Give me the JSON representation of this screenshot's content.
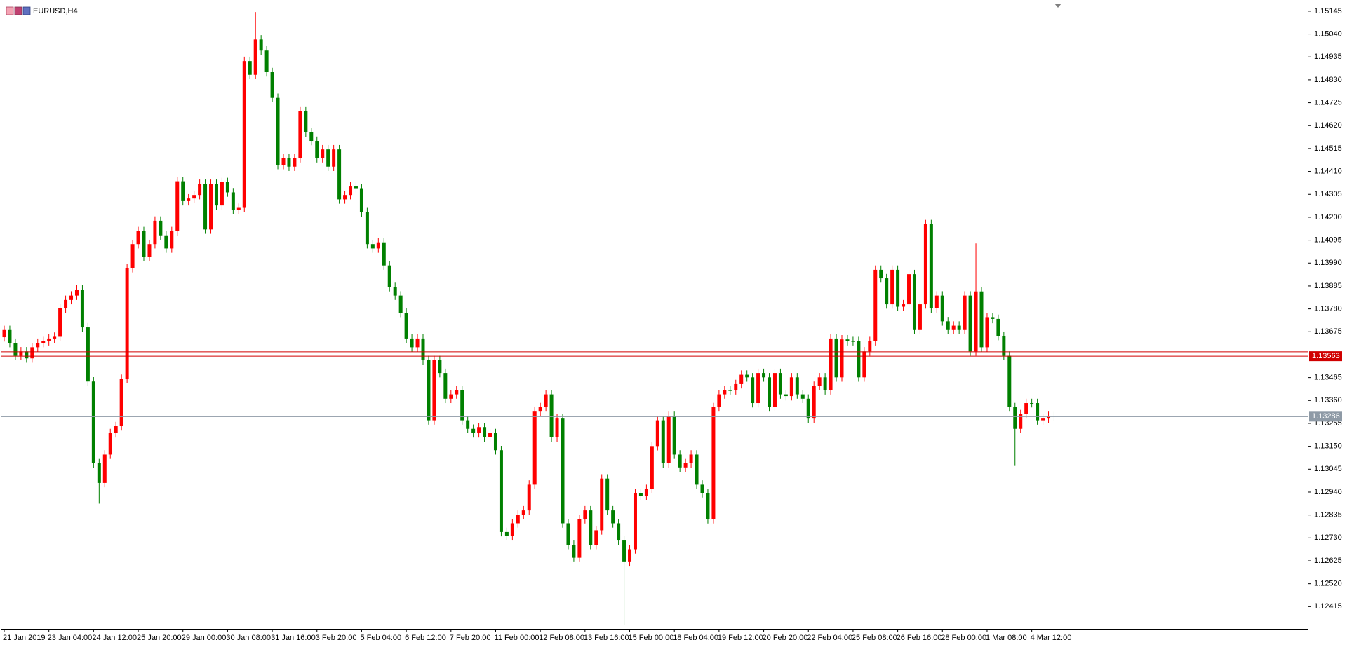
{
  "chart_data": {
    "type": "candlestick",
    "title": "EURUSD,H4",
    "categories": [
      "21 Jan 2019",
      null,
      null,
      null,
      null,
      null,
      null,
      null,
      "23 Jan 04:00",
      null,
      null,
      null,
      null,
      null,
      null,
      null,
      "24 Jan 12:00",
      null,
      null,
      null,
      null,
      null,
      null,
      null,
      "25 Jan 20:00",
      null,
      null,
      null,
      null,
      null,
      null,
      null,
      "29 Jan 00:00",
      null,
      null,
      null,
      null,
      null,
      null,
      null,
      "30 Jan 08:00",
      null,
      null,
      null,
      null,
      null,
      null,
      null,
      "31 Jan 16:00",
      null,
      null,
      null,
      null,
      null,
      null,
      null,
      "3 Feb 20:00",
      null,
      null,
      null,
      null,
      null,
      null,
      null,
      "5 Feb 04:00",
      null,
      null,
      null,
      null,
      null,
      null,
      null,
      "6 Feb 12:00",
      null,
      null,
      null,
      null,
      null,
      null,
      null,
      "7 Feb 20:00",
      null,
      null,
      null,
      null,
      null,
      null,
      null,
      "11 Feb 00:00",
      null,
      null,
      null,
      null,
      null,
      null,
      null,
      "12 Feb 08:00",
      null,
      null,
      null,
      null,
      null,
      null,
      null,
      "13 Feb 16:00",
      null,
      null,
      null,
      null,
      null,
      null,
      null,
      "15 Feb 00:00",
      null,
      null,
      null,
      null,
      null,
      null,
      null,
      "18 Feb 04:00",
      null,
      null,
      null,
      null,
      null,
      null,
      null,
      "19 Feb 12:00",
      null,
      null,
      null,
      null,
      null,
      null,
      null,
      "20 Feb 20:00",
      null,
      null,
      null,
      null,
      null,
      null,
      null,
      "22 Feb 04:00",
      null,
      null,
      null,
      null,
      null,
      null,
      null,
      "25 Feb 08:00",
      null,
      null,
      null,
      null,
      null,
      null,
      null,
      "26 Feb 16:00",
      null,
      null,
      null,
      null,
      null,
      null,
      null,
      "28 Feb 00:00",
      null,
      null,
      null,
      null,
      null,
      null,
      null,
      "1 Mar 08:00",
      null,
      null,
      null,
      null,
      null,
      null,
      null,
      "4 Mar 12:00",
      null,
      null,
      null,
      null
    ],
    "open": [
      1.1365,
      1.13683,
      1.13624,
      1.13565,
      1.13585,
      1.13553,
      1.13604,
      1.13624,
      1.13632,
      1.13644,
      1.13652,
      1.13782,
      1.13821,
      1.13841,
      1.13868,
      1.13695,
      1.13447,
      1.13072,
      1.12982,
      1.13112,
      1.1321,
      1.13242,
      1.13459,
      1.13967,
      1.14077,
      1.14136,
      1.14018,
      1.14077,
      1.14184,
      1.14117,
      1.14057,
      1.14136,
      1.14365,
      1.14274,
      1.14286,
      1.14302,
      1.14353,
      1.14144,
      1.14353,
      1.14254,
      1.14361,
      1.14314,
      1.14235,
      1.14243,
      1.14916,
      1.14853,
      1.15015,
      1.14964,
      1.14865,
      1.14747,
      1.1444,
      1.14471,
      1.14432,
      1.14471,
      1.14688,
      1.14589,
      1.1455,
      1.14471,
      1.14511,
      1.14432,
      1.14511,
      1.14282,
      1.14302,
      1.14341,
      1.14333,
      1.14223,
      1.14077,
      1.14057,
      1.14085,
      1.13979,
      1.1388,
      1.13841,
      1.13762,
      1.13644,
      1.13604,
      1.13644,
      1.13545,
      1.13269,
      1.13545,
      1.13486,
      1.13368,
      1.13388,
      1.13407,
      1.13269,
      1.1323,
      1.1321,
      1.13238,
      1.13191,
      1.1321,
      1.13132,
      1.12757,
      1.12738,
      1.12797,
      1.12836,
      1.12856,
      1.12974,
      1.13309,
      1.13329,
      1.13388,
      1.13191,
      1.13277,
      1.12797,
      1.12698,
      1.12639,
      1.12816,
      1.12856,
      1.12698,
      1.12765,
      1.13002,
      1.12856,
      1.12797,
      1.12718,
      1.12619,
      1.12678,
      1.12935,
      1.12923,
      1.12954,
      1.13151,
      1.13269,
      1.13072,
      1.13289,
      1.13112,
      1.13053,
      1.13072,
      1.13112,
      1.12974,
      1.12935,
      1.12816,
      1.13329,
      1.13388,
      1.13407,
      1.13407,
      1.13435,
      1.13478,
      1.13466,
      1.13348,
      1.13486,
      1.13466,
      1.13329,
      1.13486,
      1.13388,
      1.1338,
      1.13466,
      1.13388,
      1.13368,
      1.13277,
      1.13427,
      1.13466,
      1.13407,
      1.13644,
      1.13466,
      1.1364,
      1.13632,
      1.13632,
      1.13466,
      1.13585,
      1.13632,
      1.13959,
      1.1392,
      1.13801,
      1.13959,
      1.1379,
      1.13801,
      1.13939,
      1.13683,
      1.13801,
      1.14168,
      1.13782,
      1.13841,
      1.13723,
      1.13683,
      1.13703,
      1.13683,
      1.13841,
      1.13585,
      1.1386,
      1.13604,
      1.13742,
      1.13734,
      1.13656,
      1.13565,
      1.13329,
      1.1323,
      1.13297,
      1.13348,
      1.13348,
      1.13269,
      1.13277,
      1.13289
    ],
    "high": [
      1.13703,
      1.13703,
      1.13644,
      1.13605,
      1.13605,
      1.13624,
      1.13644,
      1.13652,
      1.13664,
      1.13672,
      1.13802,
      1.13841,
      1.13861,
      1.13888,
      1.13888,
      1.13715,
      1.13467,
      1.13092,
      1.13132,
      1.1323,
      1.13262,
      1.13479,
      1.13987,
      1.14097,
      1.14156,
      1.14156,
      1.14097,
      1.14204,
      1.14204,
      1.14137,
      1.14156,
      1.14385,
      1.14385,
      1.14306,
      1.14322,
      1.14373,
      1.14373,
      1.14373,
      1.14373,
      1.14381,
      1.14381,
      1.14334,
      1.14263,
      1.14936,
      1.14936,
      1.15141,
      1.15035,
      1.14984,
      1.14885,
      1.14767,
      1.14491,
      1.14491,
      1.14491,
      1.14708,
      1.14708,
      1.14609,
      1.1457,
      1.14531,
      1.14531,
      1.14531,
      1.14531,
      1.14322,
      1.14361,
      1.14361,
      1.14353,
      1.14243,
      1.14097,
      1.14105,
      1.14105,
      1.13999,
      1.139,
      1.13861,
      1.13782,
      1.13664,
      1.13664,
      1.13664,
      1.13565,
      1.13565,
      1.13565,
      1.13506,
      1.13408,
      1.13427,
      1.13427,
      1.13289,
      1.1325,
      1.13258,
      1.13258,
      1.1323,
      1.1323,
      1.13152,
      1.12777,
      1.12817,
      1.12856,
      1.12876,
      1.12994,
      1.13329,
      1.13349,
      1.13408,
      1.13408,
      1.13297,
      1.13297,
      1.12817,
      1.12718,
      1.12836,
      1.12876,
      1.12876,
      1.12785,
      1.13022,
      1.13022,
      1.12876,
      1.12817,
      1.12738,
      1.12698,
      1.12955,
      1.12955,
      1.12974,
      1.13171,
      1.13289,
      1.13289,
      1.13309,
      1.13309,
      1.13132,
      1.13092,
      1.13132,
      1.13132,
      1.12994,
      1.12955,
      1.13349,
      1.13408,
      1.13427,
      1.13427,
      1.13455,
      1.13498,
      1.13498,
      1.13486,
      1.13506,
      1.13506,
      1.13486,
      1.13506,
      1.13506,
      1.13408,
      1.13486,
      1.13486,
      1.13408,
      1.13388,
      1.13447,
      1.13486,
      1.13486,
      1.13664,
      1.13664,
      1.1366,
      1.1366,
      1.13652,
      1.13652,
      1.13605,
      1.13652,
      1.13979,
      1.13979,
      1.1394,
      1.13979,
      1.13979,
      1.13821,
      1.13959,
      1.13959,
      1.13821,
      1.14188,
      1.14188,
      1.13861,
      1.13861,
      1.13743,
      1.13723,
      1.13723,
      1.13861,
      1.13861,
      1.1408,
      1.1388,
      1.13762,
      1.13762,
      1.13754,
      1.13676,
      1.13585,
      1.13349,
      1.13317,
      1.13368,
      1.13368,
      1.13368,
      1.13297,
      1.13309,
      1.13309
    ],
    "low": [
      1.1363,
      1.13604,
      1.13545,
      1.13545,
      1.13533,
      1.13533,
      1.13584,
      1.13604,
      1.13612,
      1.13624,
      1.13632,
      1.13762,
      1.13801,
      1.13821,
      1.13675,
      1.13427,
      1.13052,
      1.12887,
      1.12962,
      1.13092,
      1.1319,
      1.13222,
      1.13439,
      1.13947,
      1.14057,
      1.13998,
      1.13998,
      1.14057,
      1.14097,
      1.14037,
      1.14037,
      1.14116,
      1.14254,
      1.14254,
      1.14266,
      1.14282,
      1.14124,
      1.14124,
      1.14234,
      1.14234,
      1.14294,
      1.14215,
      1.14215,
      1.14223,
      1.14833,
      1.14833,
      1.14944,
      1.14845,
      1.14727,
      1.1442,
      1.1442,
      1.14412,
      1.14412,
      1.14451,
      1.14569,
      1.1453,
      1.14451,
      1.14451,
      1.14412,
      1.14412,
      1.14262,
      1.14262,
      1.14282,
      1.14313,
      1.14203,
      1.14057,
      1.14037,
      1.14037,
      1.13959,
      1.1386,
      1.13821,
      1.13742,
      1.13624,
      1.13584,
      1.13584,
      1.13525,
      1.13249,
      1.13249,
      1.13466,
      1.13348,
      1.13348,
      1.13368,
      1.13249,
      1.1321,
      1.1319,
      1.1319,
      1.13171,
      1.13171,
      1.13112,
      1.12737,
      1.12718,
      1.12718,
      1.12777,
      1.12816,
      1.12836,
      1.12954,
      1.13289,
      1.13309,
      1.13171,
      1.13171,
      1.12777,
      1.12678,
      1.12619,
      1.12619,
      1.12796,
      1.12678,
      1.12678,
      1.12745,
      1.12836,
      1.12777,
      1.12698,
      1.12332,
      1.12599,
      1.12658,
      1.12903,
      1.12903,
      1.12934,
      1.13131,
      1.13052,
      1.13052,
      1.13092,
      1.13033,
      1.13033,
      1.13052,
      1.12954,
      1.12915,
      1.12796,
      1.12796,
      1.13309,
      1.13368,
      1.13387,
      1.13387,
      1.13415,
      1.13446,
      1.13328,
      1.13328,
      1.13446,
      1.13309,
      1.13309,
      1.13368,
      1.1336,
      1.1336,
      1.13368,
      1.13348,
      1.13257,
      1.13257,
      1.13407,
      1.13387,
      1.13387,
      1.13446,
      1.13446,
      1.13612,
      1.13612,
      1.13446,
      1.13446,
      1.13565,
      1.13612,
      1.139,
      1.13781,
      1.13781,
      1.1377,
      1.1377,
      1.13781,
      1.13663,
      1.13663,
      1.13781,
      1.13762,
      1.13762,
      1.13703,
      1.13663,
      1.13663,
      1.13663,
      1.13663,
      1.13565,
      1.13565,
      1.13584,
      1.13584,
      1.13714,
      1.13636,
      1.13545,
      1.13309,
      1.1306,
      1.1321,
      1.13277,
      1.13328,
      1.13249,
      1.13249,
      1.13257,
      1.13266
    ],
    "close": [
      1.13683,
      1.13624,
      1.13565,
      1.13585,
      1.13553,
      1.13604,
      1.13624,
      1.13632,
      1.13644,
      1.13652,
      1.13782,
      1.13821,
      1.13841,
      1.13868,
      1.13695,
      1.13447,
      1.13072,
      1.12982,
      1.13112,
      1.1321,
      1.13242,
      1.13459,
      1.13967,
      1.14077,
      1.14136,
      1.14018,
      1.14077,
      1.14184,
      1.14117,
      1.14057,
      1.14136,
      1.14365,
      1.14274,
      1.14286,
      1.14302,
      1.14353,
      1.14144,
      1.14353,
      1.14254,
      1.14361,
      1.14314,
      1.14235,
      1.14243,
      1.14916,
      1.14853,
      1.15015,
      1.14964,
      1.14865,
      1.14747,
      1.1444,
      1.14471,
      1.14432,
      1.14471,
      1.14688,
      1.14589,
      1.1455,
      1.14471,
      1.14511,
      1.14432,
      1.14511,
      1.14282,
      1.14302,
      1.14341,
      1.14333,
      1.14223,
      1.14077,
      1.14057,
      1.14085,
      1.13979,
      1.1388,
      1.13841,
      1.13762,
      1.13644,
      1.13604,
      1.13644,
      1.13545,
      1.13269,
      1.13545,
      1.13486,
      1.13368,
      1.13388,
      1.13407,
      1.13269,
      1.1323,
      1.1321,
      1.13238,
      1.13191,
      1.1321,
      1.13132,
      1.12757,
      1.12738,
      1.12797,
      1.12836,
      1.12856,
      1.12974,
      1.13309,
      1.13329,
      1.13388,
      1.13191,
      1.13277,
      1.12797,
      1.12698,
      1.12639,
      1.12816,
      1.12856,
      1.12698,
      1.12765,
      1.13002,
      1.12856,
      1.12797,
      1.12718,
      1.12619,
      1.12678,
      1.12935,
      1.12923,
      1.12954,
      1.13151,
      1.13269,
      1.13072,
      1.13289,
      1.13112,
      1.13053,
      1.13072,
      1.13112,
      1.12974,
      1.12935,
      1.12816,
      1.13329,
      1.13388,
      1.13407,
      1.13407,
      1.13435,
      1.13478,
      1.13466,
      1.13348,
      1.13486,
      1.13466,
      1.13329,
      1.13486,
      1.13388,
      1.1338,
      1.13466,
      1.13388,
      1.13368,
      1.13277,
      1.13427,
      1.13466,
      1.13407,
      1.13644,
      1.13466,
      1.1364,
      1.13632,
      1.13632,
      1.13466,
      1.13585,
      1.13632,
      1.13959,
      1.1392,
      1.13801,
      1.13959,
      1.1379,
      1.13801,
      1.13939,
      1.13683,
      1.13801,
      1.14168,
      1.13782,
      1.13841,
      1.13723,
      1.13683,
      1.13703,
      1.13683,
      1.13841,
      1.13585,
      1.1386,
      1.13604,
      1.13742,
      1.13734,
      1.13656,
      1.13565,
      1.13329,
      1.1323,
      1.13297,
      1.13348,
      1.13348,
      1.13269,
      1.13277,
      1.13289,
      1.13286
    ],
    "up_color": "#ff0000",
    "down_color": "#008000",
    "ylim": [
      1.1231,
      1.1518
    ],
    "yticks": [
      1.15145,
      {
        "value": 1.1504,
        "label": "1.15040"
      },
      1.14935,
      {
        "value": 1.1483,
        "label": "1.14830"
      },
      1.14725,
      {
        "value": 1.1462,
        "label": "1.14620"
      },
      1.14515,
      {
        "value": 1.1441,
        "label": "1.14410"
      },
      1.14305,
      {
        "value": 1.142,
        "label": "1.14200"
      },
      1.14095,
      {
        "value": 1.1399,
        "label": "1.13990"
      },
      1.13885,
      {
        "value": 1.1378,
        "label": "1.13780"
      },
      1.13675,
      1.13465,
      {
        "value": 1.1336,
        "label": "1.13360"
      },
      1.13255,
      {
        "value": 1.1315,
        "label": "1.13150"
      },
      1.13045,
      {
        "value": 1.1294,
        "label": "1.12940"
      },
      1.12835,
      {
        "value": 1.1273,
        "label": "1.12730"
      },
      1.12625,
      {
        "value": 1.1252,
        "label": "1.12520"
      },
      1.12415
    ],
    "levels": [
      1.13583,
      1.13563
    ],
    "level_color": "#d00000",
    "bid": 1.13286,
    "bid_color": "#8e9aa6",
    "grid": false
  }
}
